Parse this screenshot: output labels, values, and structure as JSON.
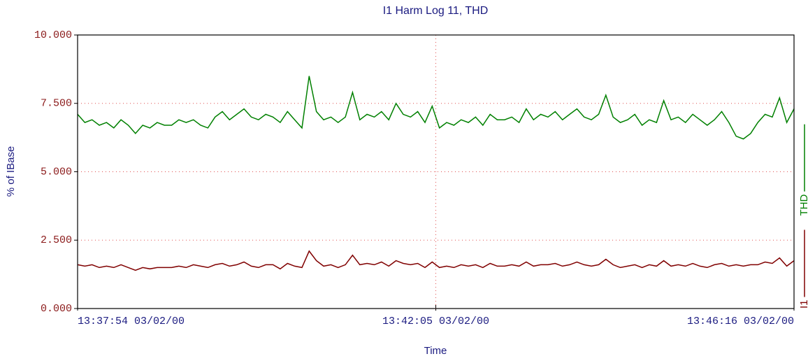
{
  "chart_data": {
    "type": "line",
    "title": "I1 Harm Log 11, THD",
    "y_label": "% of IBase",
    "x_label": "Time",
    "xlim": [
      0,
      502
    ],
    "xticks": [
      {
        "value": 0,
        "label": "13:37:54 03/02/00"
      },
      {
        "value": 251,
        "label": "13:42:05 03/02/00"
      },
      {
        "value": 502,
        "label": "13:46:16 03/02/00"
      }
    ],
    "ylim": [
      0,
      10
    ],
    "yticks": [
      {
        "value": 0,
        "label": "0.000"
      },
      {
        "value": 2.5,
        "label": "2.500"
      },
      {
        "value": 5,
        "label": "5.000"
      },
      {
        "value": 7.5,
        "label": "7.500"
      },
      {
        "value": 10,
        "label": "10.000"
      }
    ],
    "grid": true,
    "legend": "right",
    "series": [
      {
        "name": "THD",
        "color": "#008000",
        "values": [
          7.1,
          6.8,
          6.9,
          6.7,
          6.8,
          6.6,
          6.9,
          6.7,
          6.4,
          6.7,
          6.6,
          6.8,
          6.7,
          6.7,
          6.9,
          6.8,
          6.9,
          6.7,
          6.6,
          7.0,
          7.2,
          6.9,
          7.1,
          7.3,
          7.0,
          6.9,
          7.1,
          7.0,
          6.8,
          7.2,
          6.9,
          6.6,
          8.5,
          7.2,
          6.9,
          7.0,
          6.8,
          7.0,
          7.9,
          6.9,
          7.1,
          7.0,
          7.2,
          6.9,
          7.5,
          7.1,
          7.0,
          7.2,
          6.8,
          7.4,
          6.6,
          6.8,
          6.7,
          6.9,
          6.8,
          7.0,
          6.7,
          7.1,
          6.9,
          6.9,
          7.0,
          6.8,
          7.3,
          6.9,
          7.1,
          7.0,
          7.2,
          6.9,
          7.1,
          7.3,
          7.0,
          6.9,
          7.1,
          7.8,
          7.0,
          6.8,
          6.9,
          7.1,
          6.7,
          6.9,
          6.8,
          7.6,
          6.9,
          7.0,
          6.8,
          7.1,
          6.9,
          6.7,
          6.9,
          7.2,
          6.8,
          6.3,
          6.2,
          6.4,
          6.8,
          7.1,
          7.0,
          7.7,
          6.8,
          7.3
        ]
      },
      {
        "name": "I1",
        "color": "#800000",
        "values": [
          1.6,
          1.55,
          1.6,
          1.5,
          1.55,
          1.5,
          1.6,
          1.5,
          1.4,
          1.5,
          1.45,
          1.5,
          1.5,
          1.5,
          1.55,
          1.5,
          1.6,
          1.55,
          1.5,
          1.6,
          1.65,
          1.55,
          1.6,
          1.7,
          1.55,
          1.5,
          1.6,
          1.6,
          1.45,
          1.65,
          1.55,
          1.5,
          2.1,
          1.75,
          1.55,
          1.6,
          1.5,
          1.6,
          1.95,
          1.6,
          1.65,
          1.6,
          1.7,
          1.55,
          1.75,
          1.65,
          1.6,
          1.65,
          1.5,
          1.7,
          1.5,
          1.55,
          1.5,
          1.6,
          1.55,
          1.6,
          1.5,
          1.65,
          1.55,
          1.55,
          1.6,
          1.55,
          1.7,
          1.55,
          1.6,
          1.6,
          1.65,
          1.55,
          1.6,
          1.7,
          1.6,
          1.55,
          1.6,
          1.8,
          1.6,
          1.5,
          1.55,
          1.6,
          1.5,
          1.6,
          1.55,
          1.75,
          1.55,
          1.6,
          1.55,
          1.65,
          1.55,
          1.5,
          1.6,
          1.65,
          1.55,
          1.6,
          1.55,
          1.6,
          1.6,
          1.7,
          1.65,
          1.85,
          1.55,
          1.75
        ]
      }
    ]
  }
}
